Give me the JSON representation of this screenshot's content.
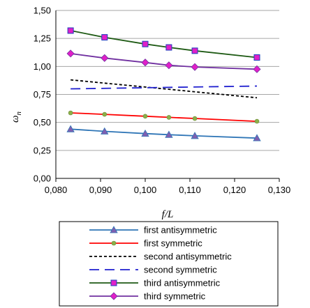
{
  "chart_data": {
    "type": "line",
    "xlabel": "f/L",
    "ylabel": "ω",
    "ylabel_sub": "n",
    "xlim": [
      0.08,
      0.13
    ],
    "ylim": [
      0,
      1.5
    ],
    "xticks": [
      "0,080",
      "0,090",
      "0,100",
      "0,110",
      "0,120",
      "0,130"
    ],
    "yticks": [
      "0,00",
      "0,25",
      "0,50",
      "0,75",
      "1,00",
      "1,25",
      "1,50"
    ],
    "grid": "horizontal",
    "legend_position": "bottom",
    "series": [
      {
        "name": "first antisymmetric",
        "color": "#2e75b6",
        "marker": "triangle",
        "marker_color": "#7f5fb0",
        "dash": "solid",
        "x": [
          0.0833,
          0.0909,
          0.1,
          0.1053,
          0.1111,
          0.125
        ],
        "y": [
          0.44,
          0.42,
          0.4,
          0.39,
          0.38,
          0.36
        ]
      },
      {
        "name": "first symmetric",
        "color": "#ff0000",
        "marker": "circle",
        "marker_color": "#8cb04a",
        "dash": "solid",
        "x": [
          0.0833,
          0.0909,
          0.1,
          0.1053,
          0.1111,
          0.125
        ],
        "y": [
          0.585,
          0.572,
          0.555,
          0.545,
          0.535,
          0.51
        ]
      },
      {
        "name": "second antisymmetric",
        "color": "#000000",
        "marker": "none",
        "dash": "short-dash",
        "x": [
          0.0833,
          0.125
        ],
        "y": [
          0.88,
          0.72
        ]
      },
      {
        "name": "second symmetric",
        "color": "#1f1fcf",
        "marker": "none",
        "dash": "long-dash",
        "x": [
          0.0833,
          0.125
        ],
        "y": [
          0.8,
          0.825
        ]
      },
      {
        "name": "third antisymmetric",
        "color": "#1e5a14",
        "marker": "square",
        "marker_color": "#e020c8",
        "dash": "solid",
        "x": [
          0.0833,
          0.0909,
          0.1,
          0.1053,
          0.1111,
          0.125
        ],
        "y": [
          1.32,
          1.26,
          1.2,
          1.17,
          1.14,
          1.08
        ]
      },
      {
        "name": "third symmetric",
        "color": "#7030a0",
        "marker": "diamond",
        "marker_color": "#e020c8",
        "dash": "solid",
        "x": [
          0.0833,
          0.0909,
          0.1,
          0.1053,
          0.1111,
          0.125
        ],
        "y": [
          1.115,
          1.075,
          1.035,
          1.01,
          0.995,
          0.975
        ]
      }
    ]
  }
}
